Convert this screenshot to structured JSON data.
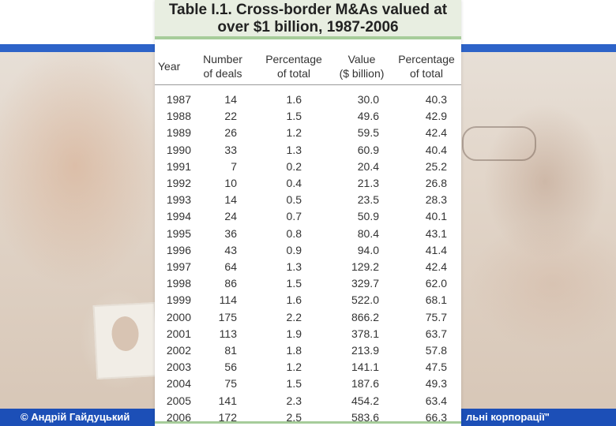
{
  "table": {
    "title_line1": "Table I.1. Cross-border M&As valued at",
    "title_line2": "over $1 billion, 1987-2006",
    "headers": {
      "year": "Year",
      "num_deals_1": "Number",
      "num_deals_2": "of deals",
      "pct1_1": "Percentage",
      "pct1_2": "of total",
      "value_1": "Value",
      "value_2": "($ billion)",
      "pct2_1": "Percentage",
      "pct2_2": "of total"
    },
    "rows": [
      {
        "year": "1987",
        "deals": "14",
        "pct_deals": "1.6",
        "value": "30.0",
        "pct_value": "40.3"
      },
      {
        "year": "1988",
        "deals": "22",
        "pct_deals": "1.5",
        "value": "49.6",
        "pct_value": "42.9"
      },
      {
        "year": "1989",
        "deals": "26",
        "pct_deals": "1.2",
        "value": "59.5",
        "pct_value": "42.4"
      },
      {
        "year": "1990",
        "deals": "33",
        "pct_deals": "1.3",
        "value": "60.9",
        "pct_value": "40.4"
      },
      {
        "year": "1991",
        "deals": "7",
        "pct_deals": "0.2",
        "value": "20.4",
        "pct_value": "25.2"
      },
      {
        "year": "1992",
        "deals": "10",
        "pct_deals": "0.4",
        "value": "21.3",
        "pct_value": "26.8"
      },
      {
        "year": "1993",
        "deals": "14",
        "pct_deals": "0.5",
        "value": "23.5",
        "pct_value": "28.3"
      },
      {
        "year": "1994",
        "deals": "24",
        "pct_deals": "0.7",
        "value": "50.9",
        "pct_value": "40.1"
      },
      {
        "year": "1995",
        "deals": "36",
        "pct_deals": "0.8",
        "value": "80.4",
        "pct_value": "43.1"
      },
      {
        "year": "1996",
        "deals": "43",
        "pct_deals": "0.9",
        "value": "94.0",
        "pct_value": "41.4"
      },
      {
        "year": "1997",
        "deals": "64",
        "pct_deals": "1.3",
        "value": "129.2",
        "pct_value": "42.4"
      },
      {
        "year": "1998",
        "deals": "86",
        "pct_deals": "1.5",
        "value": "329.7",
        "pct_value": "62.0"
      },
      {
        "year": "1999",
        "deals": "114",
        "pct_deals": "1.6",
        "value": "522.0",
        "pct_value": "68.1"
      },
      {
        "year": "2000",
        "deals": "175",
        "pct_deals": "2.2",
        "value": "866.2",
        "pct_value": "75.7"
      },
      {
        "year": "2001",
        "deals": "113",
        "pct_deals": "1.9",
        "value": "378.1",
        "pct_value": "63.7"
      },
      {
        "year": "2002",
        "deals": "81",
        "pct_deals": "1.8",
        "value": "213.9",
        "pct_value": "57.8"
      },
      {
        "year": "2003",
        "deals": "56",
        "pct_deals": "1.2",
        "value": "141.1",
        "pct_value": "47.5"
      },
      {
        "year": "2004",
        "deals": "75",
        "pct_deals": "1.5",
        "value": "187.6",
        "pct_value": "49.3"
      },
      {
        "year": "2005",
        "deals": "141",
        "pct_deals": "2.3",
        "value": "454.2",
        "pct_value": "63.4"
      },
      {
        "year": "2006",
        "deals": "172",
        "pct_deals": "2.5",
        "value": "583.6",
        "pct_value": "66.3"
      }
    ]
  },
  "footer": {
    "author": "© Андрій Гайдуцький",
    "course_fragment": "льні корпорації\""
  },
  "colors": {
    "title_bg": "#e8eee1",
    "accent_green": "#a6cc9a",
    "footer_blue": "#1c4fb7",
    "header_blue_line": "#2d63c8"
  }
}
